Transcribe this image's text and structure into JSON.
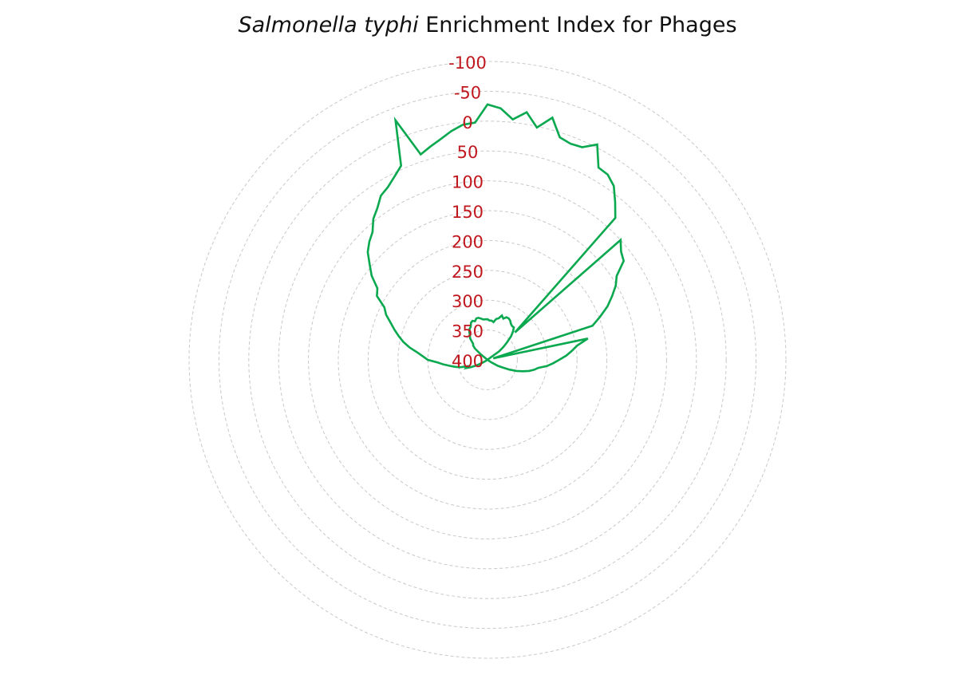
{
  "chart_data": {
    "type": "radar",
    "title_italic": "Salmonella typhi",
    "title_rest": "Enrichment Index for Phages",
    "radial_axis": {
      "reversed": true,
      "min": -100,
      "max": 400,
      "ticks": [
        -100,
        -50,
        0,
        50,
        100,
        150,
        200,
        250,
        300,
        350,
        400
      ],
      "tick_labels": [
        "-100",
        "-50",
        "0",
        "50",
        "100",
        "150",
        "200",
        "250",
        "300",
        "350",
        "400"
      ],
      "grid": true,
      "grid_style": "dashed"
    },
    "series": [
      {
        "color": "#0aa84f",
        "values": [
          -28,
          -22,
          -5,
          -20,
          2,
          -20,
          8,
          12,
          10,
          -5,
          28,
          30,
          40,
          60,
          80,
          335,
          100,
          112,
          118,
          142,
          152,
          166,
          180,
          198,
          215,
          390,
          228,
          248,
          258,
          268,
          280,
          290,
          300,
          314,
          320,
          328,
          338,
          348,
          360,
          372,
          380,
          392,
          400,
          414,
          428,
          434,
          436,
          446,
          450,
          456,
          460,
          462,
          468,
          470,
          468,
          472,
          472,
          470,
          468,
          468,
          468,
          466,
          466,
          464,
          470,
          472,
          478,
          474,
          478,
          478,
          476,
          472,
          470,
          470,
          464,
          456,
          444,
          434,
          424,
          398,
          390,
          380,
          370,
          362,
          366,
          352,
          344,
          336,
          326,
          316,
          300,
          292,
          282,
          268,
          256,
          246,
          236,
          226,
          214,
          206,
          186,
          180,
          160,
          146,
          130,
          120,
          112,
          96,
          86,
          72,
          66,
          56,
          44,
          -30,
          38,
          30,
          22,
          12,
          4,
          2
        ]
      }
    ]
  }
}
